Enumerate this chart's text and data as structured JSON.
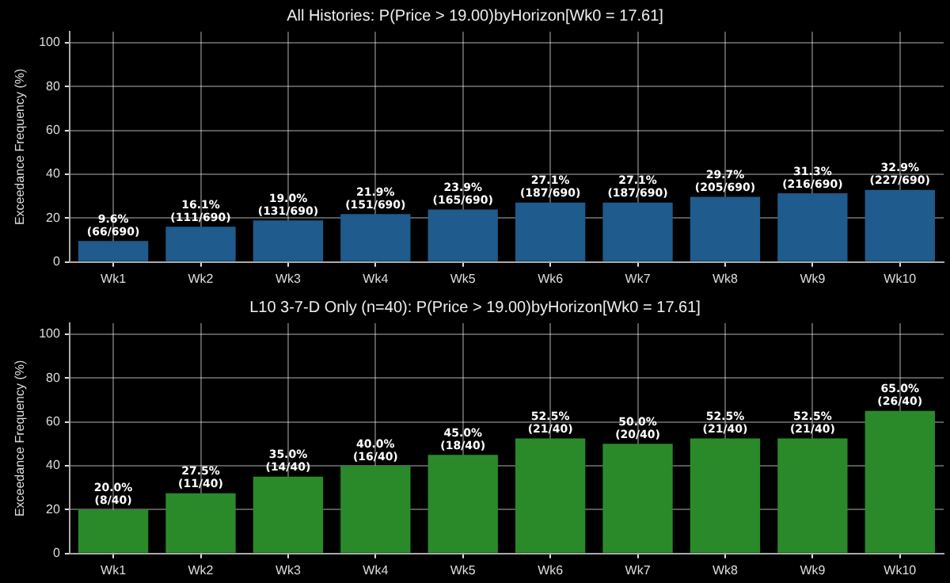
{
  "chart_data": [
    {
      "type": "bar",
      "title": "All Histories: P(Price > 19.00)byHorizon[Wk0 = 17.61]",
      "ylabel": "Exceedance Frequency (%)",
      "categories": [
        "Wk1",
        "Wk2",
        "Wk3",
        "Wk4",
        "Wk5",
        "Wk6",
        "Wk7",
        "Wk8",
        "Wk9",
        "Wk10"
      ],
      "values": [
        9.6,
        16.1,
        19.0,
        21.9,
        23.9,
        27.1,
        27.1,
        29.7,
        31.3,
        32.9
      ],
      "value_labels": [
        "9.6%\n(66/690)",
        "16.1%\n(111/690)",
        "19.0%\n(131/690)",
        "21.9%\n(151/690)",
        "23.9%\n(165/690)",
        "27.1%\n(187/690)",
        "27.1%\n(187/690)",
        "29.7%\n(205/690)",
        "31.3%\n(216/690)",
        "32.9%\n(227/690)"
      ],
      "color": "#1f5b8c",
      "ylim": [
        0,
        105
      ],
      "yticks": [
        0,
        20,
        40,
        60,
        80,
        100
      ],
      "grid": true
    },
    {
      "type": "bar",
      "title": "L10 3-7-D Only (n=40): P(Price > 19.00)byHorizon[Wk0 = 17.61]",
      "ylabel": "Exceedance Frequency (%)",
      "categories": [
        "Wk1",
        "Wk2",
        "Wk3",
        "Wk4",
        "Wk5",
        "Wk6",
        "Wk7",
        "Wk8",
        "Wk9",
        "Wk10"
      ],
      "values": [
        20.0,
        27.5,
        35.0,
        40.0,
        45.0,
        52.5,
        50.0,
        52.5,
        52.5,
        65.0
      ],
      "value_labels": [
        "20.0%\n(8/40)",
        "27.5%\n(11/40)",
        "35.0%\n(14/40)",
        "40.0%\n(16/40)",
        "45.0%\n(18/40)",
        "52.5%\n(21/40)",
        "50.0%\n(20/40)",
        "52.5%\n(21/40)",
        "52.5%\n(21/40)",
        "65.0%\n(26/40)"
      ],
      "color": "#2a8a2a",
      "ylim": [
        0,
        105
      ],
      "yticks": [
        0,
        20,
        40,
        60,
        80,
        100
      ],
      "grid": true
    }
  ]
}
